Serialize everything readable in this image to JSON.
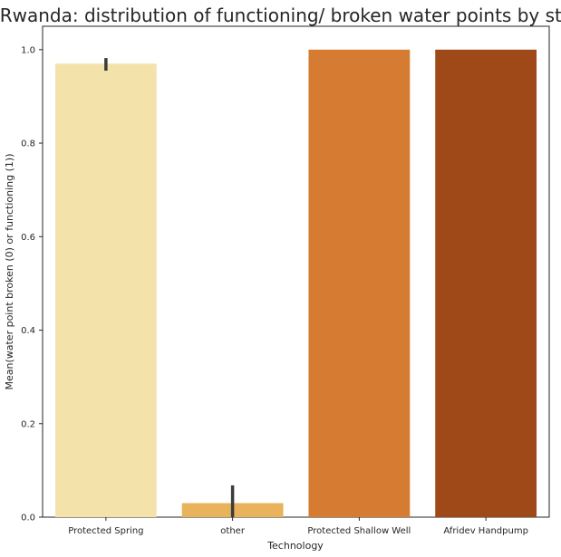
{
  "chart_data": {
    "type": "bar",
    "title": "Rwanda: distribution of functioning/ broken water points by state",
    "xlabel": "Technology",
    "ylabel": "Mean(water point broken (0) or functioning (1))",
    "categories": [
      "Protected Spring",
      "other",
      "Protected Shallow Well",
      "Afridev Handpump"
    ],
    "values": [
      0.97,
      0.03,
      1.0,
      1.0
    ],
    "error_low": [
      0.955,
      0.0,
      1.0,
      1.0
    ],
    "error_high": [
      0.982,
      0.068,
      1.0,
      1.0
    ],
    "colors": [
      "#f3e3ab",
      "#e8b35b",
      "#d67c32",
      "#a04918"
    ],
    "ylim": [
      0,
      1.05
    ],
    "yticks": [
      0.0,
      0.2,
      0.4,
      0.6,
      0.8,
      1.0
    ],
    "ytick_labels": [
      "0.0",
      "0.2",
      "0.4",
      "0.6",
      "0.8",
      "1.0"
    ],
    "grid": false,
    "legend": "none"
  }
}
